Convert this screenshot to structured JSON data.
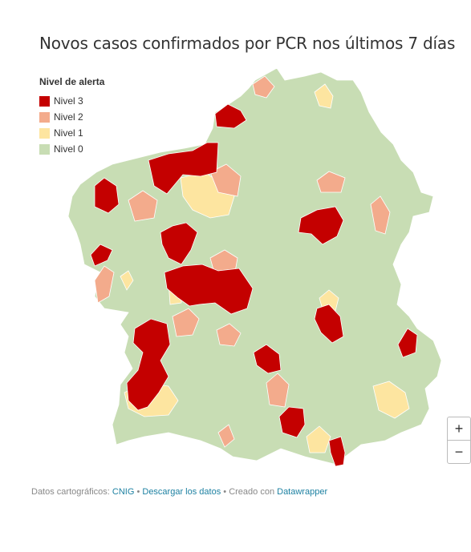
{
  "title": "Novos casos confirmados por PCR nos últimos 7 días",
  "legend": {
    "title": "Nivel de alerta",
    "items": [
      {
        "label": "Nivel 3",
        "color": "#c40000"
      },
      {
        "label": "Nivel 2",
        "color": "#f3ab8c"
      },
      {
        "label": "Nivel 1",
        "color": "#fde5a0"
      },
      {
        "label": "Nivel 0",
        "color": "#c8ddb4"
      }
    ]
  },
  "zoom": {
    "in": "+",
    "out": "−"
  },
  "footer": {
    "source_label": "Datos cartográficos:",
    "source_link": "CNIG",
    "separator": "•",
    "download_link": "Descargar los datos",
    "credit_label": "Creado con",
    "credit_link": "Datawrapper"
  }
}
